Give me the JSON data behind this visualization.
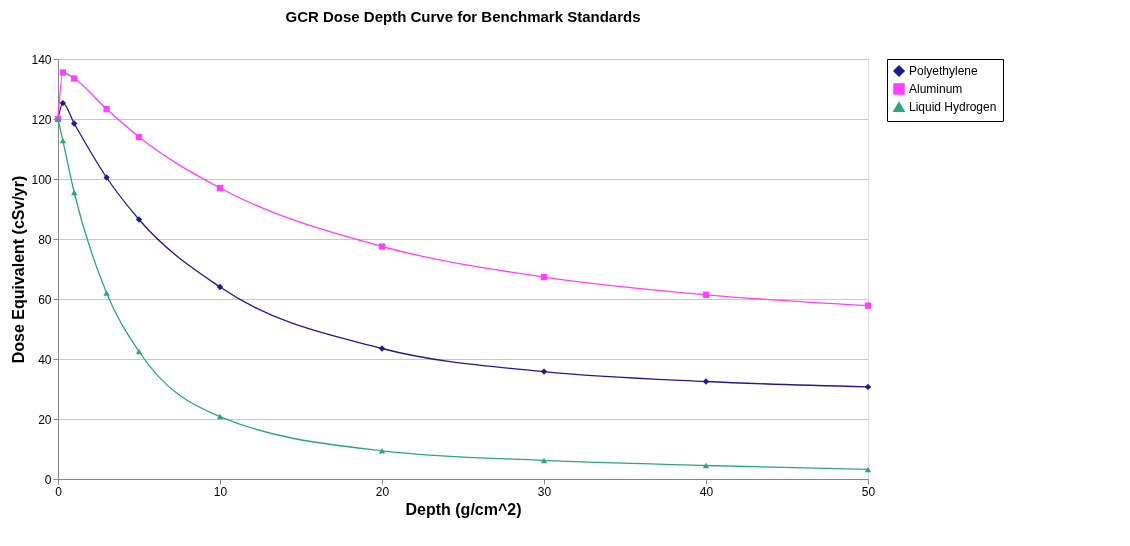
{
  "chart_data": {
    "type": "line",
    "title": "GCR Dose Depth Curve for Benchmark Standards",
    "xlabel": "Depth (g/cm^2)",
    "ylabel": "Dose Equivalent (cSv/yr)",
    "x": [
      0,
      0.3,
      1,
      3,
      5,
      10,
      20,
      30,
      40,
      50
    ],
    "series": [
      {
        "name": "Polyethylene",
        "color": "#1c1c8f",
        "marker": "diamond",
        "values": [
          120,
          125.3,
          118.5,
          100.5,
          86.5,
          64,
          43.5,
          35.8,
          32.5,
          30.7
        ]
      },
      {
        "name": "Aluminum",
        "color": "#ff40ff",
        "marker": "square",
        "values": [
          120,
          135.5,
          133.5,
          123.3,
          114,
          97,
          77.5,
          67.3,
          61.4,
          57.8
        ]
      },
      {
        "name": "Liquid Hydrogen",
        "color": "#2ca67a",
        "marker": "triangle",
        "values": [
          120,
          112.8,
          95.5,
          62,
          42.5,
          20.8,
          9.4,
          6.2,
          4.5,
          3.2
        ]
      }
    ],
    "xlim": [
      0,
      50
    ],
    "xticks": [
      0,
      10,
      20,
      30,
      40,
      50
    ],
    "ylim": [
      0,
      140
    ],
    "yticks": [
      0,
      20,
      40,
      60,
      80,
      100,
      120,
      140
    ],
    "grid": "y",
    "legend": "right",
    "line_style": "solid"
  }
}
